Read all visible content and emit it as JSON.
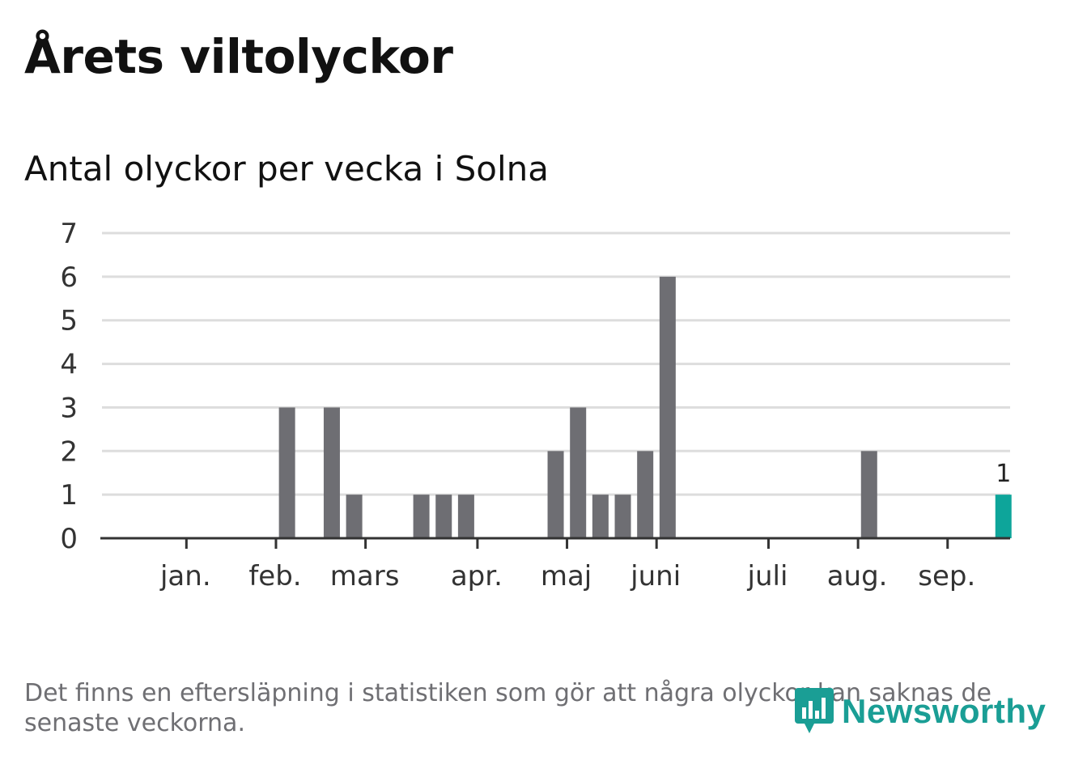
{
  "title": "Årets viltolyckor",
  "subtitle": "Antal olyckor per vecka i Solna",
  "footnote": "Det finns en eftersläpning i statistiken som gör att några olyckor kan saknas de senaste veckorna.",
  "brand": {
    "name": "Newsworthy",
    "icon": "newsworthy-logo-icon",
    "color": "#1a9e95"
  },
  "colors": {
    "bar": "#6e6e73",
    "highlight": "#0ea59a",
    "grid": "#dddddd",
    "axis": "#333333"
  },
  "chart_data": {
    "type": "bar",
    "title": "Årets viltolyckor",
    "subtitle": "Antal olyckor per vecka i Solna",
    "xlabel": "",
    "ylabel": "",
    "ylim": [
      0,
      7
    ],
    "yticks": [
      0,
      1,
      2,
      3,
      4,
      5,
      6,
      7
    ],
    "grid": true,
    "weeks": [
      1,
      2,
      3,
      4,
      5,
      6,
      7,
      8,
      9,
      10,
      11,
      12,
      13,
      14,
      15,
      16,
      17,
      18,
      19,
      20,
      21,
      22,
      23,
      24,
      25,
      26,
      27,
      28,
      29,
      30,
      31,
      32,
      33,
      34,
      35,
      36,
      37,
      38,
      39,
      40
    ],
    "values": [
      0,
      0,
      0,
      0,
      0,
      0,
      0,
      3,
      0,
      3,
      1,
      0,
      0,
      1,
      1,
      1,
      0,
      0,
      0,
      2,
      3,
      1,
      1,
      2,
      6,
      0,
      0,
      0,
      0,
      0,
      0,
      0,
      0,
      2,
      0,
      0,
      0,
      0,
      0,
      1
    ],
    "highlight_index": 39,
    "data_labels": [
      {
        "index": 39,
        "text": "1"
      }
    ],
    "month_ticks": [
      {
        "label": "jan.",
        "week": 3
      },
      {
        "label": "feb.",
        "week": 7
      },
      {
        "label": "mars",
        "week": 11
      },
      {
        "label": "apr.",
        "week": 16
      },
      {
        "label": "maj",
        "week": 20
      },
      {
        "label": "juni",
        "week": 24
      },
      {
        "label": "juli",
        "week": 29
      },
      {
        "label": "aug.",
        "week": 33
      },
      {
        "label": "sep.",
        "week": 37
      }
    ]
  }
}
